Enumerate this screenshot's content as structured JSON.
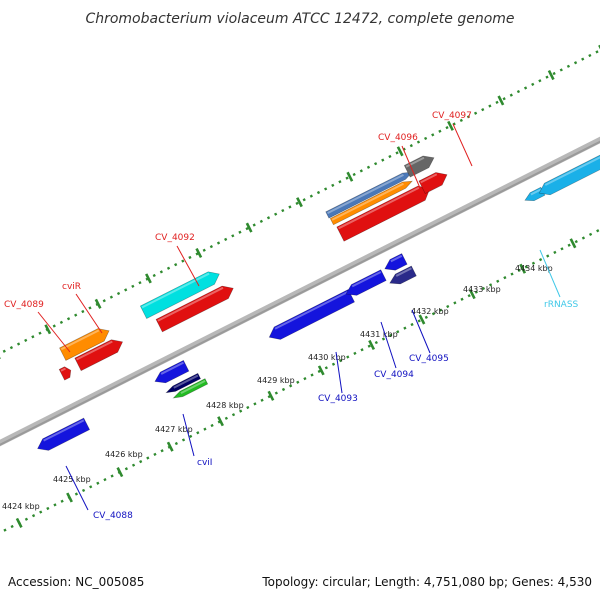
{
  "title": "Chromobacterium violaceum ATCC 12472, complete genome",
  "footer": {
    "accession": "Accession: NC_005085",
    "summary": "Topology: circular; Length: 4,751,080 bp; Genes: 4,530"
  },
  "colors": {
    "backbone": "#9a9a9a",
    "dotted_track": "#2f8a2f",
    "tick": "#2f8a2f",
    "forward_label": "#e02020",
    "reverse_label": "#1010c0",
    "rna_label": "#40c8e8"
  },
  "tick_labels": [
    "4424 kbp",
    "4425 kbp",
    "4426 kbp",
    "4427 kbp",
    "4428 kbp",
    "4429 kbp",
    "4430 kbp",
    "4431 kbp",
    "4432 kbp",
    "4433 kbp",
    "4434 kbp"
  ],
  "gene_labels": [
    {
      "text": "CV_4089",
      "strand": "forward"
    },
    {
      "text": "cviR",
      "strand": "forward"
    },
    {
      "text": "CV_4092",
      "strand": "forward"
    },
    {
      "text": "CV_4096",
      "strand": "forward"
    },
    {
      "text": "CV_4097",
      "strand": "forward"
    },
    {
      "text": "CV_4088",
      "strand": "reverse"
    },
    {
      "text": "cviI",
      "strand": "reverse"
    },
    {
      "text": "CV_4093",
      "strand": "reverse"
    },
    {
      "text": "CV_4094",
      "strand": "reverse"
    },
    {
      "text": "CV_4095",
      "strand": "reverse"
    },
    {
      "text": "rRNASS",
      "strand": "rna"
    }
  ]
}
